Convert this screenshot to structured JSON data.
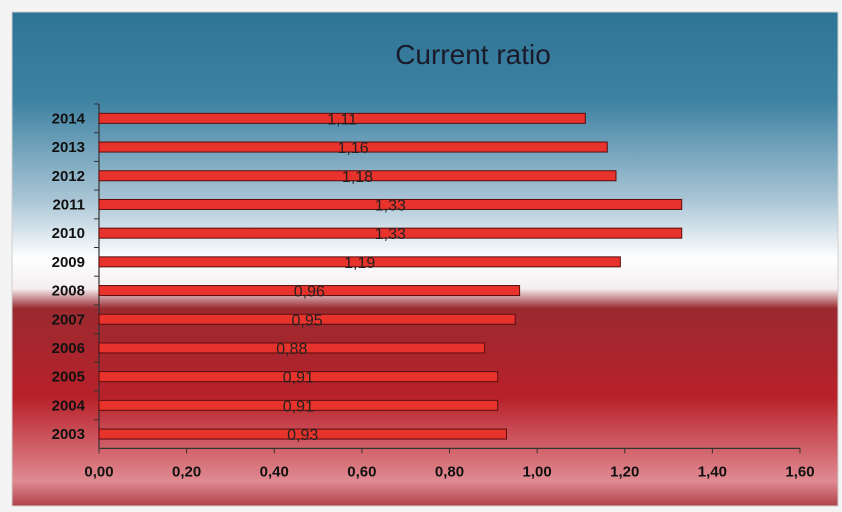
{
  "chart_data": {
    "type": "bar",
    "orientation": "horizontal",
    "title": "Current ratio",
    "xlabel": "",
    "ylabel": "",
    "categories": [
      "2014",
      "2013",
      "2012",
      "2011",
      "2010",
      "2009",
      "2008",
      "2007",
      "2006",
      "2005",
      "2004",
      "2003"
    ],
    "values": [
      1.11,
      1.16,
      1.18,
      1.33,
      1.33,
      1.19,
      0.96,
      0.95,
      0.88,
      0.91,
      0.91,
      0.93
    ],
    "data_labels": [
      "1,11",
      "1,16",
      "1,18",
      "1,33",
      "1,33",
      "1,19",
      "0,96",
      "0,95",
      "0,88",
      "0,91",
      "0,91",
      "0,93"
    ],
    "xlim": [
      0,
      1.6
    ],
    "x_ticks": [
      "0,00",
      "0,20",
      "0,40",
      "0,60",
      "0,80",
      "1,00",
      "1,20",
      "1,40",
      "1,60"
    ],
    "grid": false,
    "legend": "none",
    "bar_color": "#e8322c",
    "bar_edge_color": "#5a0c0c",
    "background_top_color": "#2e7496",
    "background_mid_color": "#ffffff",
    "background_bottom_color": "#b8212a"
  }
}
